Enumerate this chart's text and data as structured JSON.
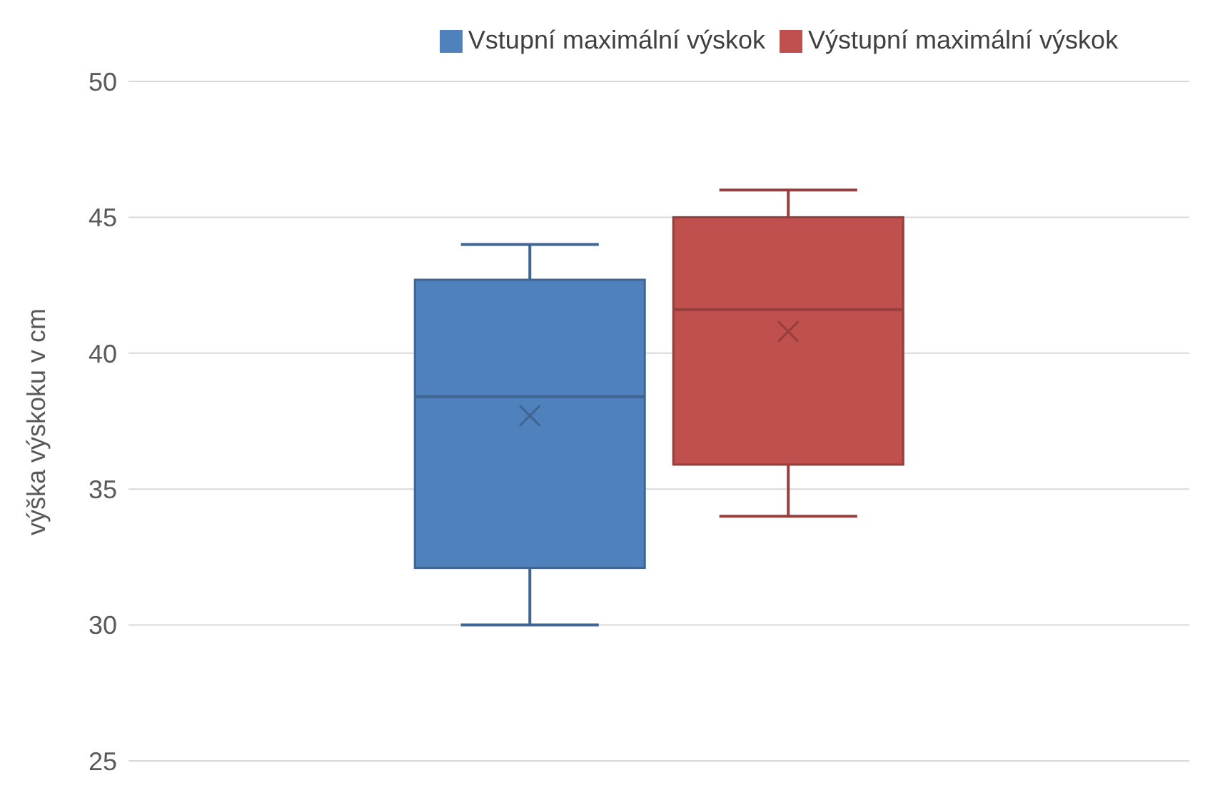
{
  "chart_data": {
    "type": "box",
    "ylabel": "výška výskoku v cm",
    "categories": [
      null
    ],
    "ylim": [
      25,
      50
    ],
    "yticks": [
      25,
      30,
      35,
      40,
      45,
      50
    ],
    "grid": "y",
    "legend": "top",
    "tick_labels": "y",
    "series": [
      {
        "name": "Vstupní maximální výskok",
        "color": "#4f81bd",
        "boxes": [
          {
            "low": 30,
            "q1": 32.1,
            "median": 38.4,
            "q3": 42.7,
            "high": 44,
            "mean": 37.7
          }
        ]
      },
      {
        "name": "Výstupní maximální výskok",
        "color": "#c0504d",
        "boxes": [
          {
            "low": 34,
            "q1": 35.9,
            "median": 41.6,
            "q3": 45,
            "high": 46,
            "mean": 40.8
          }
        ]
      }
    ]
  }
}
